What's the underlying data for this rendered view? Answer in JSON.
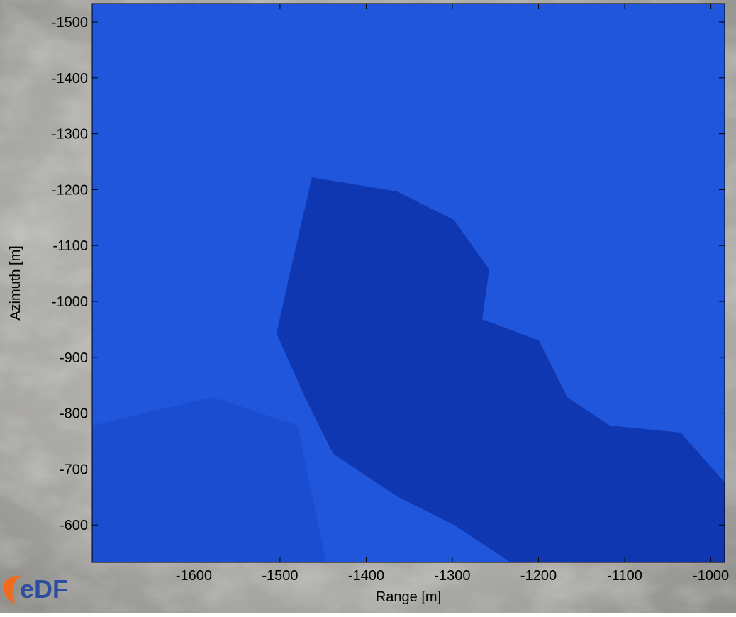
{
  "chart_data": {
    "type": "image",
    "xlabel": "Range [m]",
    "ylabel": "Azimuth [m]",
    "xlim": [
      -1718,
      -984
    ],
    "xticks": [
      -1600,
      -1500,
      -1400,
      -1300,
      -1200,
      -1100,
      -1000
    ],
    "ylim": [
      -533,
      -1533
    ],
    "yticks": [
      -1500,
      -1400,
      -1300,
      -1200,
      -1100,
      -1000,
      -900,
      -800,
      -700,
      -600
    ],
    "logo": "eDF"
  }
}
